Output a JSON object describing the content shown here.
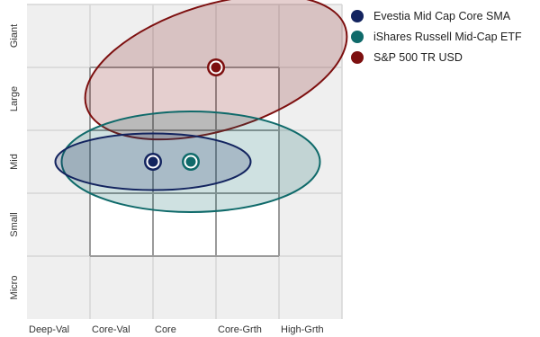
{
  "chart_data": {
    "type": "scatter",
    "title": "",
    "xlabel": "",
    "ylabel": "",
    "x_categories": [
      "Deep-Val",
      "Core-Val",
      "Core",
      "Core-Grth",
      "High-Grth"
    ],
    "y_categories": [
      "Micro",
      "Small",
      "Mid",
      "Large",
      "Giant"
    ],
    "grid": true,
    "legend_position": "top-right",
    "series": [
      {
        "name": "Evestia Mid Cap Core SMA",
        "color": "#13245f",
        "point": {
          "x": 2.0,
          "y": 2.5
        },
        "ellipse": {
          "rx": 1.55,
          "ry": 0.45
        }
      },
      {
        "name": "iShares Russell Mid-Cap ETF",
        "color": "#0f6a6a",
        "point": {
          "x": 2.6,
          "y": 2.5
        },
        "ellipse": {
          "rx": 2.05,
          "ry": 0.8
        }
      },
      {
        "name": "S&P 500 TR USD",
        "color": "#7d0f0f",
        "point": {
          "x": 3.0,
          "y": 4.0
        },
        "ellipse": {
          "rx": 2.15,
          "ry": 1.0,
          "rotate_deg": -17
        }
      }
    ]
  }
}
